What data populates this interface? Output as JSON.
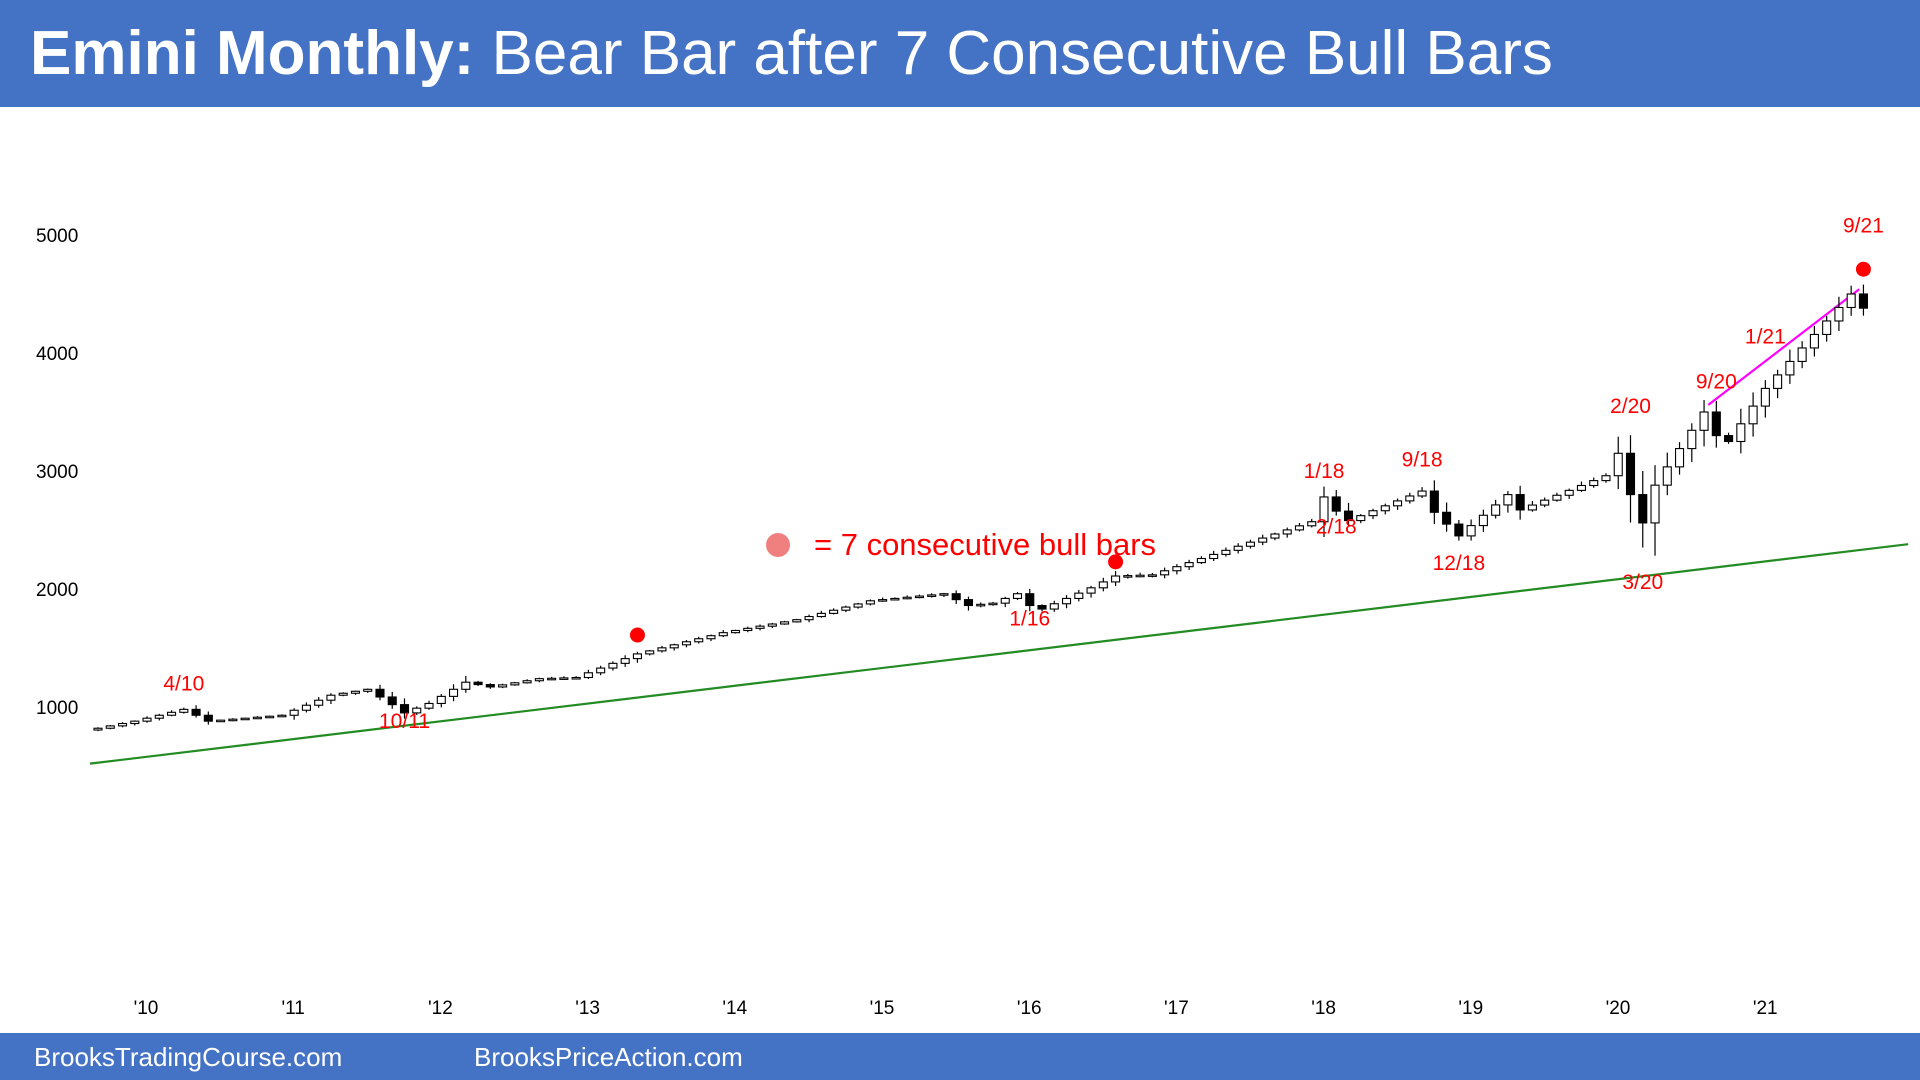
{
  "title": {
    "bold": "Emini Monthly:",
    "rest": " Bear Bar after 7 Consecutive Bull Bars"
  },
  "footer": {
    "left": "BrooksTradingCourse.com",
    "right": "BrooksPriceAction.com"
  },
  "colors": {
    "banner": "#4472c4",
    "annotation": "#ff0000",
    "support_line": "#228b22",
    "channel_line": "#ff00ff",
    "bear_bar": "#000000",
    "bull_bar": "#ffffff",
    "legend_dot": "#f08080"
  },
  "chart_data": {
    "type": "candlestick",
    "title": "Emini Monthly: Bear Bar after 7 Consecutive Bull Bars",
    "ylim": [
      400,
      5600
    ],
    "y_ticks": [
      1000,
      2000,
      3000,
      4000,
      5000
    ],
    "x_ticks": [
      "'10",
      "'11",
      "'12",
      "'13",
      "'14",
      "'15",
      "'16",
      "'17",
      "'18",
      "'19",
      "'20",
      "'21"
    ],
    "legend": {
      "marker": "dot",
      "text": "= 7 consecutive bull bars"
    },
    "anchors": [
      [
        "2009-09",
        820
      ],
      [
        "2009-12",
        880
      ],
      [
        "2010-04",
        980
      ],
      [
        "2010-06",
        880
      ],
      [
        "2010-12",
        930
      ],
      [
        "2011-04",
        1100
      ],
      [
        "2011-07",
        1150
      ],
      [
        "2011-09",
        1020
      ],
      [
        "2011-10",
        950
      ],
      [
        "2011-12",
        1030
      ],
      [
        "2012-03",
        1210
      ],
      [
        "2012-05",
        1170
      ],
      [
        "2012-09",
        1240
      ],
      [
        "2012-12",
        1250
      ],
      [
        "2013-05",
        1450
      ],
      [
        "2013-12",
        1630
      ],
      [
        "2014-06",
        1740
      ],
      [
        "2014-12",
        1900
      ],
      [
        "2015-06",
        1960
      ],
      [
        "2015-08",
        1860
      ],
      [
        "2015-10",
        1880
      ],
      [
        "2015-12",
        1960
      ],
      [
        "2016-01",
        1860
      ],
      [
        "2016-02",
        1830
      ],
      [
        "2016-06",
        2010
      ],
      [
        "2016-08",
        2110
      ],
      [
        "2016-11",
        2120
      ],
      [
        "2017-12",
        2570
      ],
      [
        "2018-01",
        2780
      ],
      [
        "2018-02",
        2660
      ],
      [
        "2018-03",
        2580
      ],
      [
        "2018-09",
        2830
      ],
      [
        "2018-10",
        2650
      ],
      [
        "2018-12",
        2450
      ],
      [
        "2019-04",
        2800
      ],
      [
        "2019-05",
        2670
      ],
      [
        "2019-12",
        2960
      ],
      [
        "2020-01",
        3150
      ],
      [
        "2020-02",
        2800
      ],
      [
        "2020-03",
        2560
      ],
      [
        "2020-04",
        2880
      ],
      [
        "2020-08",
        3500
      ],
      [
        "2020-09",
        3300
      ],
      [
        "2020-10",
        3250
      ],
      [
        "2021-01",
        3700
      ],
      [
        "2021-08",
        4500
      ],
      [
        "2021-09",
        4380
      ]
    ],
    "trendlines": [
      {
        "name": "support",
        "from": [
          "2009-09",
          520
        ],
        "to": [
          "2021-12",
          2380
        ]
      },
      {
        "name": "bull-channel",
        "from": [
          "2020-09",
          3560
        ],
        "to": [
          "2021-08",
          4540
        ]
      }
    ],
    "markers": [
      {
        "date": "2013-05",
        "value": 1610
      },
      {
        "date": "2016-08",
        "value": 2230
      },
      {
        "date": "2021-09",
        "value": 4710
      }
    ],
    "annotations": [
      {
        "text": "4/10",
        "date": "2010-04",
        "value": 1140
      },
      {
        "text": "10/11",
        "date": "2011-10",
        "value": 820
      },
      {
        "text": "1/16",
        "date": "2016-01",
        "value": 1690
      },
      {
        "text": "1/18",
        "date": "2018-01",
        "value": 2940
      },
      {
        "text": "2/18",
        "date": "2018-02",
        "value": 2470
      },
      {
        "text": "9/18",
        "date": "2018-09",
        "value": 3040
      },
      {
        "text": "12/18",
        "date": "2018-12",
        "value": 2160
      },
      {
        "text": "2/20",
        "date": "2020-02",
        "value": 3490
      },
      {
        "text": "3/20",
        "date": "2020-03",
        "value": 2000
      },
      {
        "text": "9/20",
        "date": "2020-09",
        "value": 3700
      },
      {
        "text": "1/21",
        "date": "2021-01",
        "value": 4080
      },
      {
        "text": "9/21",
        "date": "2021-09",
        "value": 5020
      }
    ]
  }
}
